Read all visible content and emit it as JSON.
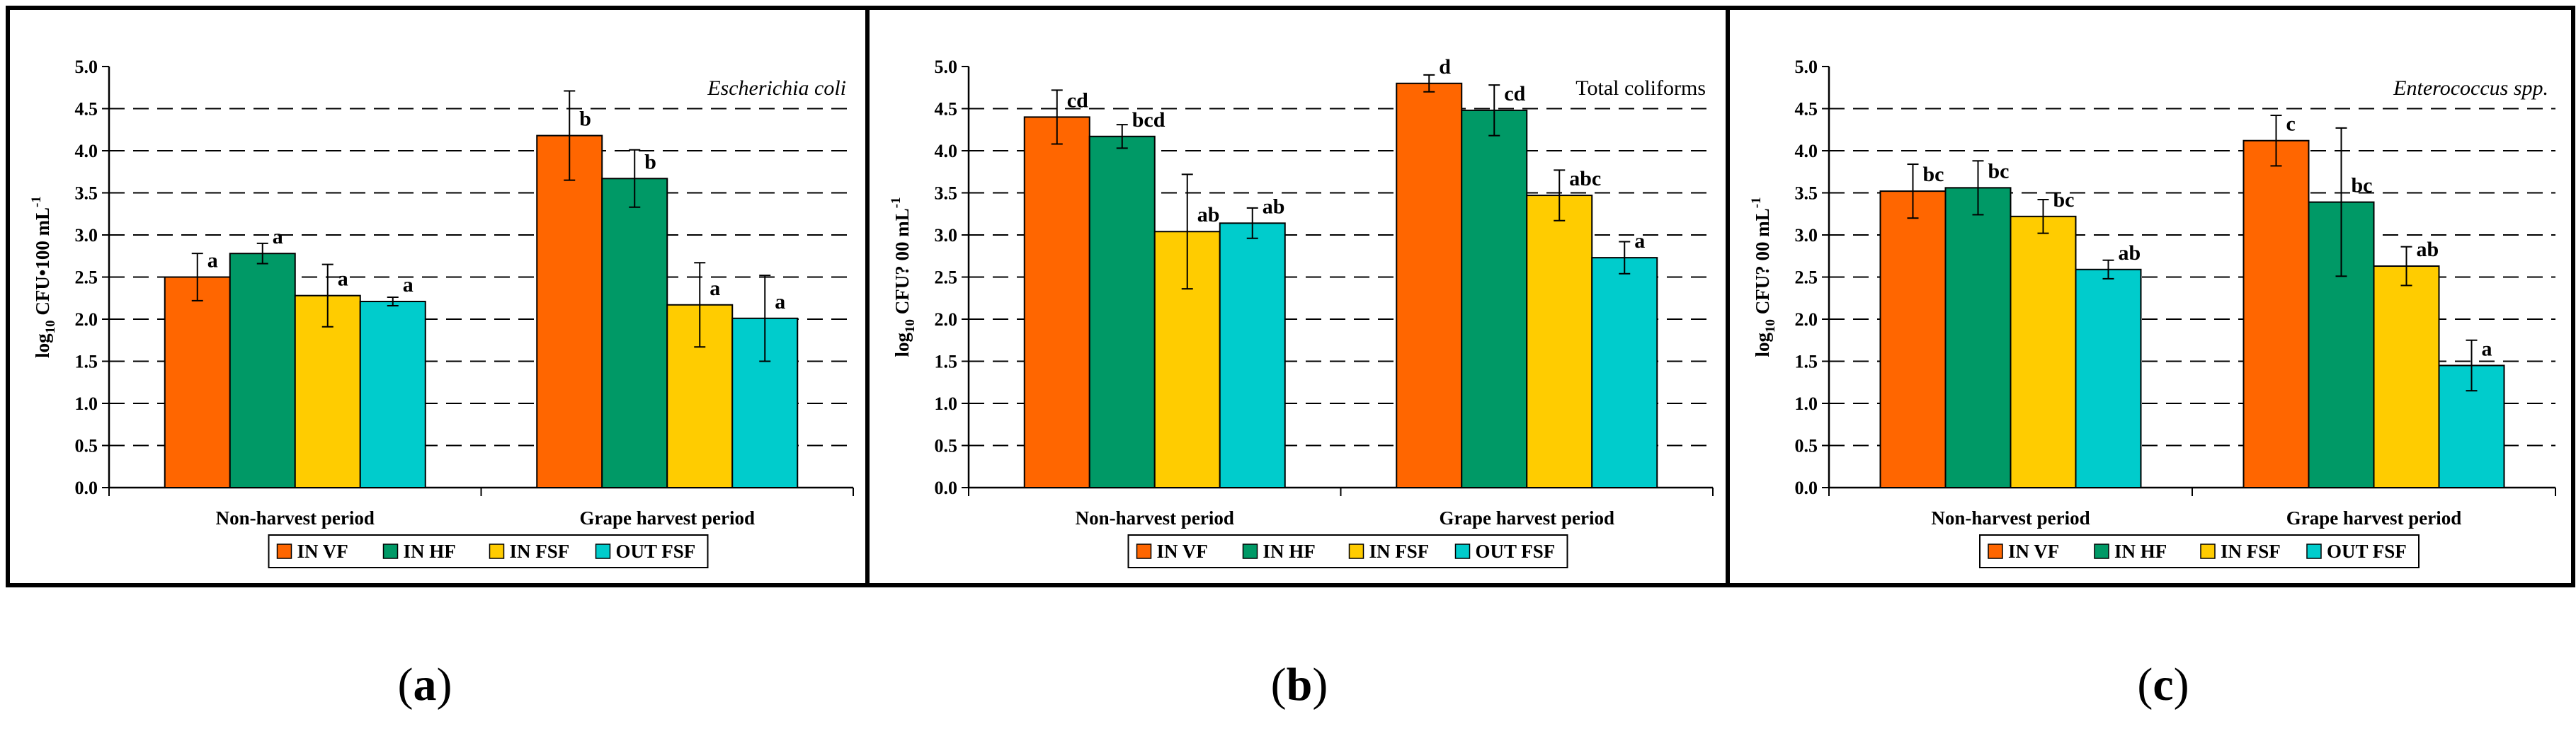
{
  "colors": {
    "IN VF": "#ff6600",
    "IN HF": "#009966",
    "IN FSF": "#ffcc00",
    "OUT FSF": "#00cccc"
  },
  "legend": [
    "IN VF",
    "IN HF",
    "IN FSF",
    "OUT FSF"
  ],
  "panel_labels": {
    "a": {
      "open": "(",
      "letter": "a",
      "close": ")"
    },
    "b": {
      "open": "(",
      "letter": "b",
      "close": ")"
    },
    "c": {
      "open": "(",
      "letter": "c",
      "close": ")"
    }
  },
  "chart_data": [
    {
      "id": "a",
      "type": "bar",
      "title": "Escherichia coli",
      "title_style": "italic",
      "ylabel": {
        "base": "log",
        "sub": "10",
        "rest": " CFU•100 mL",
        "sup": "-1"
      },
      "ylim": [
        0,
        5
      ],
      "yticks": [
        "0.0",
        "0.5",
        "1.0",
        "1.5",
        "2.0",
        "2.5",
        "3.0",
        "3.5",
        "4.0",
        "4.5",
        "5.0"
      ],
      "categories": [
        "Non-harvest period",
        "Grape harvest period"
      ],
      "series": [
        {
          "name": "IN VF",
          "values": [
            2.5,
            4.18
          ],
          "errors": [
            0.28,
            0.53
          ],
          "letters": [
            "a",
            "b"
          ]
        },
        {
          "name": "IN HF",
          "values": [
            2.78,
            3.67
          ],
          "errors": [
            0.12,
            0.34
          ],
          "letters": [
            "a",
            "b"
          ]
        },
        {
          "name": "IN FSF",
          "values": [
            2.28,
            2.17
          ],
          "errors": [
            0.37,
            0.5
          ],
          "letters": [
            "a",
            "a"
          ]
        },
        {
          "name": "OUT FSF",
          "values": [
            2.21,
            2.01
          ],
          "errors": [
            0.05,
            0.51
          ],
          "letters": [
            "a",
            "a"
          ]
        }
      ]
    },
    {
      "id": "b",
      "type": "bar",
      "title": "Total coliforms",
      "title_style": "normal",
      "ylabel": {
        "base": "log",
        "sub": "10",
        "rest": " CFU? 00 mL",
        "sup": "-1"
      },
      "ylim": [
        0,
        5
      ],
      "yticks": [
        "0.0",
        "0.5",
        "1.0",
        "1.5",
        "2.0",
        "2.5",
        "3.0",
        "3.5",
        "4.0",
        "4.5",
        "5.0"
      ],
      "categories": [
        "Non-harvest period",
        "Grape harvest period"
      ],
      "series": [
        {
          "name": "IN VF",
          "values": [
            4.4,
            4.8
          ],
          "errors": [
            0.32,
            0.1
          ],
          "letters": [
            "cd",
            "d"
          ]
        },
        {
          "name": "IN HF",
          "values": [
            4.17,
            4.48
          ],
          "errors": [
            0.14,
            0.3
          ],
          "letters": [
            "bcd",
            "cd"
          ]
        },
        {
          "name": "IN FSF",
          "values": [
            3.04,
            3.47
          ],
          "errors": [
            0.68,
            0.3
          ],
          "letters": [
            "ab",
            "abc"
          ]
        },
        {
          "name": "OUT FSF",
          "values": [
            3.14,
            2.73
          ],
          "errors": [
            0.18,
            0.19
          ],
          "letters": [
            "ab",
            "a"
          ]
        }
      ]
    },
    {
      "id": "c",
      "type": "bar",
      "title": "Enterococcus spp.",
      "title_style": "italic",
      "ylabel": {
        "base": "log",
        "sub": "10",
        "rest": " CFU? 00 mL",
        "sup": "-1"
      },
      "ylim": [
        0,
        5
      ],
      "yticks": [
        "0.0",
        "0.5",
        "1.0",
        "1.5",
        "2.0",
        "2.5",
        "3.0",
        "3.5",
        "4.0",
        "4.5",
        "5.0"
      ],
      "categories": [
        "Non-harvest period",
        "Grape harvest period"
      ],
      "series": [
        {
          "name": "IN VF",
          "values": [
            3.52,
            4.12
          ],
          "errors": [
            0.32,
            0.3
          ],
          "letters": [
            "bc",
            "c"
          ]
        },
        {
          "name": "IN HF",
          "values": [
            3.56,
            3.39
          ],
          "errors": [
            0.32,
            0.88
          ],
          "letters": [
            "bc",
            "bc"
          ]
        },
        {
          "name": "IN FSF",
          "values": [
            3.22,
            2.63
          ],
          "errors": [
            0.2,
            0.23
          ],
          "letters": [
            "bc",
            "ab"
          ]
        },
        {
          "name": "OUT FSF",
          "values": [
            2.59,
            1.45
          ],
          "errors": [
            0.11,
            0.3
          ],
          "letters": [
            "ab",
            "a"
          ]
        }
      ]
    }
  ]
}
